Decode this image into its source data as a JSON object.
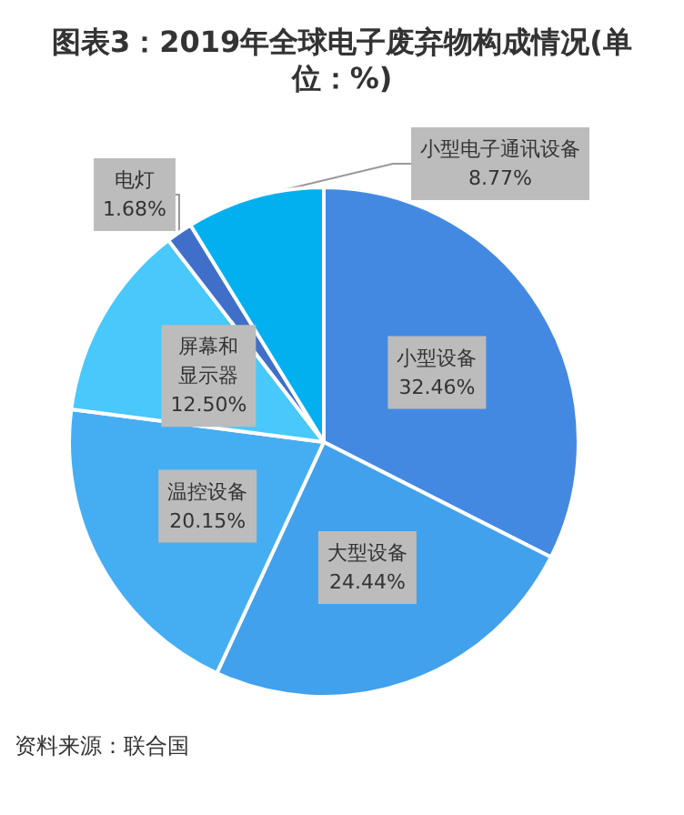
{
  "chart_data": {
    "type": "pie",
    "title": "图表3：2019年全球电子废弃物构成情况(单位：%)",
    "categories": [
      "小型设备",
      "大型设备",
      "温控设备",
      "屏幕和显示器",
      "电灯",
      "小型电子通讯设备"
    ],
    "values": [
      32.46,
      24.44,
      20.15,
      12.5,
      1.68,
      8.77
    ],
    "value_labels": [
      "32.46%",
      "24.44%",
      "20.15%",
      "12.50%",
      "1.68%",
      "8.77%"
    ],
    "colors": [
      "#4389e2",
      "#42a1ec",
      "#45aef2",
      "#48c8fb",
      "#3f6fc9",
      "#03b0ef"
    ],
    "annotations": [
      "资料来源：联合国"
    ]
  }
}
